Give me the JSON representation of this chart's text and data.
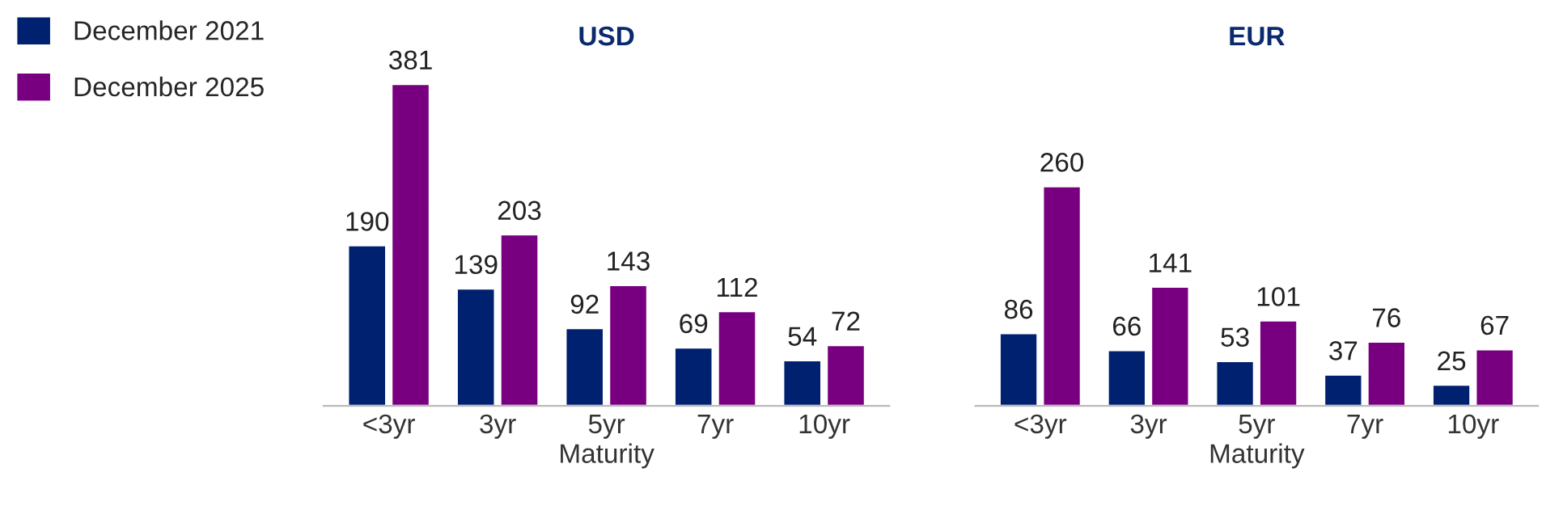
{
  "chart_data": [
    {
      "type": "bar",
      "title": "USD",
      "xlabel": "Maturity",
      "categories": [
        "<3yr",
        "3yr",
        "5yr",
        "7yr",
        "10yr"
      ],
      "series": [
        {
          "name": "December 2021",
          "color": "#002070",
          "values": [
            190,
            139,
            92,
            69,
            54
          ]
        },
        {
          "name": "December 2025",
          "color": "#780080",
          "values": [
            381,
            203,
            143,
            112,
            72
          ]
        }
      ],
      "data_labels": true,
      "legend": "top left",
      "tick_labels": "x",
      "grid": false
    },
    {
      "type": "bar",
      "title": "EUR",
      "xlabel": "Maturity",
      "categories": [
        "<3yr",
        "3yr",
        "5yr",
        "7yr",
        "10yr"
      ],
      "series": [
        {
          "color": "#002070",
          "values": [
            86,
            66,
            53,
            37,
            25
          ]
        },
        {
          "color": "#780080",
          "values": [
            260,
            141,
            101,
            76,
            67
          ]
        }
      ],
      "data_labels": true,
      "tick_labels": "x",
      "grid": false
    }
  ]
}
